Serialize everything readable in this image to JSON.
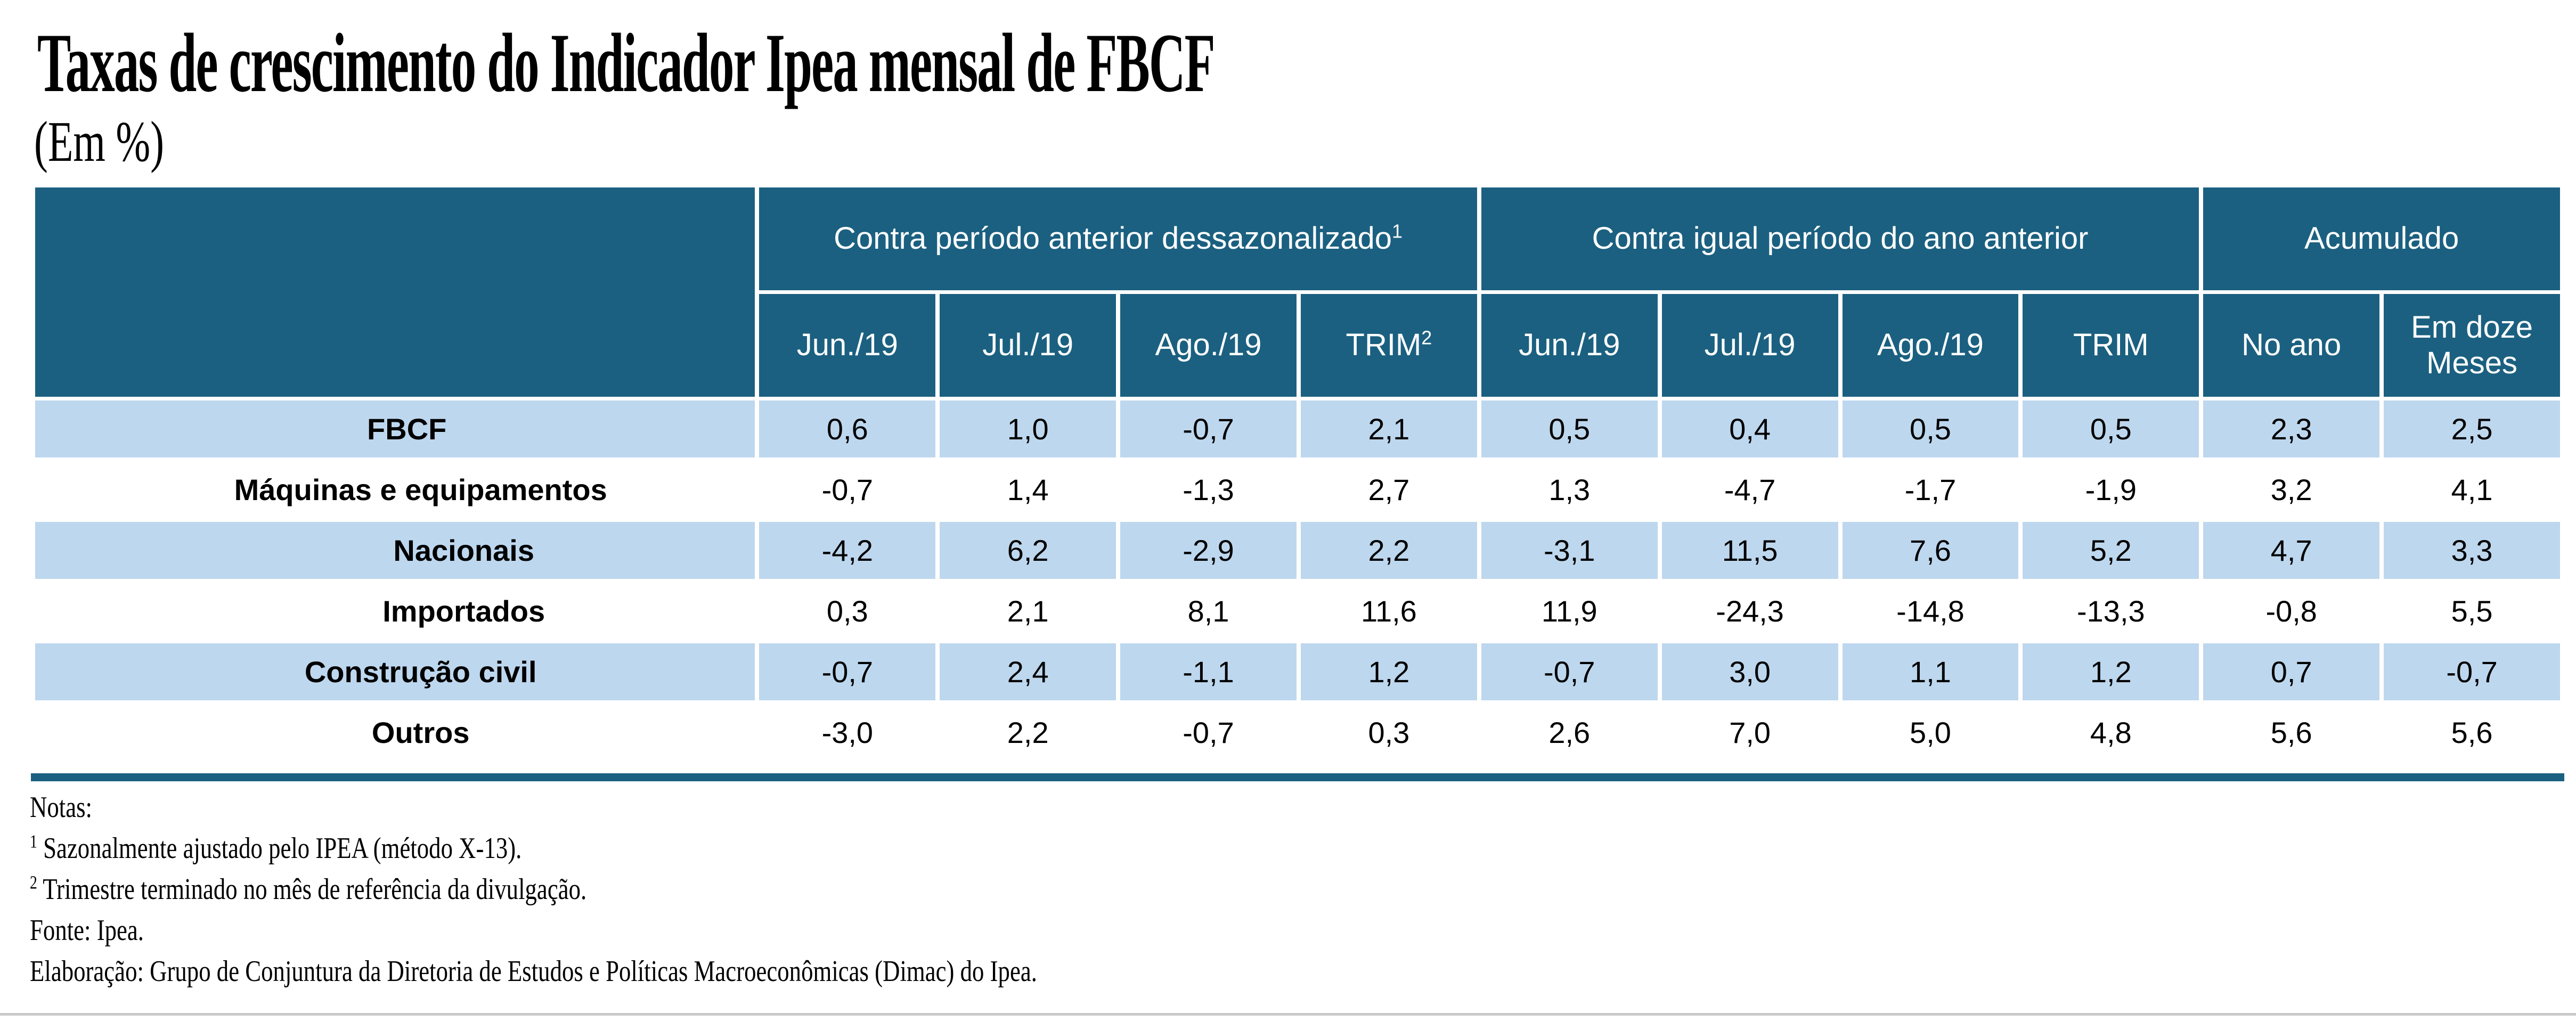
{
  "title": "Taxas de crescimento do Indicador Ipea mensal de FBCF",
  "subtitle": "(Em %)",
  "colors": {
    "header_bg": "#1B6080",
    "shaded_row": "#BDD7EE",
    "bottom_bar": "#1B6080",
    "footer_line": "#C9C9C9"
  },
  "table": {
    "groups": [
      {
        "label": "Contra período anterior dessazonalizado",
        "sup": "1"
      },
      {
        "label": "Contra igual período do ano anterior",
        "sup": ""
      },
      {
        "label": "Acumulado",
        "sup": ""
      }
    ],
    "columns": [
      {
        "text": "Jun./19",
        "sup": ""
      },
      {
        "text": "Jul./19",
        "sup": ""
      },
      {
        "text": "Ago./19",
        "sup": ""
      },
      {
        "text": "TRIM",
        "sup": "2"
      },
      {
        "text": "Jun./19",
        "sup": ""
      },
      {
        "text": "Jul./19",
        "sup": ""
      },
      {
        "text": "Ago./19",
        "sup": ""
      },
      {
        "text": "TRIM",
        "sup": ""
      },
      {
        "text": "No ano",
        "sup": ""
      },
      {
        "text": "Em doze Meses",
        "sup": ""
      }
    ],
    "rows": [
      {
        "label": "FBCF",
        "indent": 0,
        "shaded": true,
        "values": [
          "0,6",
          "1,0",
          "-0,7",
          "2,1",
          "0,5",
          "0,4",
          "0,5",
          "0,5",
          "2,3",
          "2,5"
        ]
      },
      {
        "label": "Máquinas e equipamentos",
        "indent": 1,
        "shaded": false,
        "values": [
          "-0,7",
          "1,4",
          "-1,3",
          "2,7",
          "1,3",
          "-4,7",
          "-1,7",
          "-1,9",
          "3,2",
          "4,1"
        ]
      },
      {
        "label": "Nacionais",
        "indent": 2,
        "shaded": true,
        "values": [
          "-4,2",
          "6,2",
          "-2,9",
          "2,2",
          "-3,1",
          "11,5",
          "7,6",
          "5,2",
          "4,7",
          "3,3"
        ]
      },
      {
        "label": "Importados",
        "indent": 2,
        "shaded": false,
        "values": [
          "0,3",
          "2,1",
          "8,1",
          "11,6",
          "11,9",
          "-24,3",
          "-14,8",
          "-13,3",
          "-0,8",
          "5,5"
        ]
      },
      {
        "label": "Construção civil",
        "indent": 1,
        "shaded": true,
        "values": [
          "-0,7",
          "2,4",
          "-1,1",
          "1,2",
          "-0,7",
          "3,0",
          "1,1",
          "1,2",
          "0,7",
          "-0,7"
        ]
      },
      {
        "label": "Outros",
        "indent": 1,
        "shaded": false,
        "values": [
          "-3,0",
          "2,2",
          "-0,7",
          "0,3",
          "2,6",
          "7,0",
          "5,0",
          "4,8",
          "5,6",
          "5,6"
        ]
      }
    ]
  },
  "notes": {
    "heading": "Notas:",
    "items": [
      {
        "sup": "1",
        "text": " Sazonalmente ajustado pelo IPEA (método X-13)."
      },
      {
        "sup": "2",
        "text": " Trimestre terminado no mês de referência da divulgação."
      }
    ],
    "fonte": "Fonte: Ipea.",
    "elaboracao": "Elaboração: Grupo de Conjuntura da Diretoria de Estudos e Políticas Macroeconômicas (Dimac) do Ipea."
  }
}
